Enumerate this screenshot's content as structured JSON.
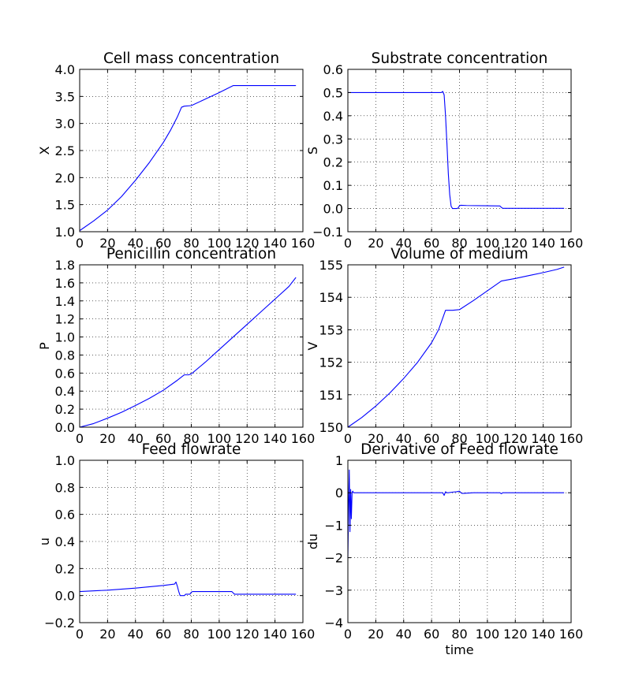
{
  "figure": {
    "background": "#ffffff",
    "line_color": "#0000ff",
    "grid": true,
    "grid_style": "dotted"
  },
  "chart_data": [
    {
      "type": "line",
      "title": "Cell mass concentration",
      "xlabel": "",
      "ylabel": "X",
      "xlim": [
        0,
        160
      ],
      "ylim": [
        1.0,
        4.0
      ],
      "xticks": [
        0,
        20,
        40,
        60,
        80,
        100,
        120,
        140,
        160
      ],
      "xtick_labels": [
        "0",
        "20",
        "40",
        "60",
        "80",
        "100",
        "120",
        "140",
        "160"
      ],
      "yticks": [
        1.0,
        1.5,
        2.0,
        2.5,
        3.0,
        3.5,
        4.0
      ],
      "ytick_labels": [
        "1.0",
        "1.5",
        "2.0",
        "2.5",
        "3.0",
        "3.5",
        "4.0"
      ],
      "series": [
        {
          "x": [
            0,
            10,
            20,
            30,
            40,
            50,
            60,
            65,
            70,
            73,
            75,
            80,
            90,
            100,
            110,
            120,
            130,
            140,
            150,
            155
          ],
          "y": [
            1.02,
            1.2,
            1.4,
            1.65,
            1.95,
            2.28,
            2.65,
            2.87,
            3.12,
            3.3,
            3.32,
            3.33,
            3.45,
            3.57,
            3.7,
            3.7,
            3.7,
            3.7,
            3.7,
            3.7
          ]
        }
      ]
    },
    {
      "type": "line",
      "title": "Substrate concentration",
      "xlabel": "",
      "ylabel": "S",
      "xlim": [
        0,
        160
      ],
      "ylim": [
        -0.1,
        0.6
      ],
      "xticks": [
        0,
        20,
        40,
        60,
        80,
        100,
        120,
        140,
        160
      ],
      "xtick_labels": [
        "0",
        "20",
        "40",
        "60",
        "80",
        "100",
        "120",
        "140",
        "160"
      ],
      "yticks": [
        -0.1,
        0.0,
        0.1,
        0.2,
        0.3,
        0.4,
        0.5,
        0.6
      ],
      "ytick_labels": [
        "−0.1",
        "0.0",
        "0.1",
        "0.2",
        "0.3",
        "0.4",
        "0.5",
        "0.6"
      ],
      "series": [
        {
          "x": [
            0,
            20,
            40,
            60,
            67,
            68,
            69,
            70,
            71,
            72,
            73,
            74,
            75,
            76,
            78,
            79,
            80,
            81,
            85,
            100,
            109,
            110,
            111,
            120,
            140,
            155
          ],
          "y": [
            0.5,
            0.5,
            0.5,
            0.5,
            0.5,
            0.505,
            0.49,
            0.4,
            0.28,
            0.15,
            0.06,
            0.01,
            0.0,
            0.0,
            0.0,
            0.002,
            0.012,
            0.014,
            0.013,
            0.012,
            0.011,
            0.005,
            0.001,
            0.001,
            0.001,
            0.001
          ]
        }
      ]
    },
    {
      "type": "line",
      "title": "Penicillin concentration",
      "xlabel": "",
      "ylabel": "P",
      "xlim": [
        0,
        160
      ],
      "ylim": [
        0.0,
        1.8
      ],
      "xticks": [
        0,
        20,
        40,
        60,
        80,
        100,
        120,
        140,
        160
      ],
      "xtick_labels": [
        "0",
        "20",
        "40",
        "60",
        "80",
        "100",
        "120",
        "140",
        "160"
      ],
      "yticks": [
        0.0,
        0.2,
        0.4,
        0.6,
        0.8,
        1.0,
        1.2,
        1.4,
        1.6,
        1.8
      ],
      "ytick_labels": [
        "0.0",
        "0.2",
        "0.4",
        "0.6",
        "0.8",
        "1.0",
        "1.2",
        "1.4",
        "1.6",
        "1.8"
      ],
      "series": [
        {
          "x": [
            0,
            10,
            20,
            30,
            40,
            50,
            60,
            70,
            75,
            78,
            80,
            90,
            100,
            110,
            120,
            130,
            140,
            150,
            155
          ],
          "y": [
            0.0,
            0.04,
            0.1,
            0.165,
            0.24,
            0.32,
            0.41,
            0.52,
            0.58,
            0.58,
            0.59,
            0.72,
            0.86,
            1.0,
            1.14,
            1.28,
            1.42,
            1.56,
            1.66
          ]
        }
      ]
    },
    {
      "type": "line",
      "title": "Volume of medium",
      "xlabel": "",
      "ylabel": "V",
      "xlim": [
        0,
        160
      ],
      "ylim": [
        150,
        155
      ],
      "xticks": [
        0,
        20,
        40,
        60,
        80,
        100,
        120,
        140,
        160
      ],
      "xtick_labels": [
        "0",
        "20",
        "40",
        "60",
        "80",
        "100",
        "120",
        "140",
        "160"
      ],
      "yticks": [
        150,
        151,
        152,
        153,
        154,
        155
      ],
      "ytick_labels": [
        "150",
        "151",
        "152",
        "153",
        "154",
        "155"
      ],
      "series": [
        {
          "x": [
            0,
            10,
            20,
            30,
            40,
            50,
            60,
            65,
            70,
            75,
            80,
            90,
            100,
            110,
            120,
            130,
            140,
            150,
            155
          ],
          "y": [
            150.0,
            150.3,
            150.65,
            151.05,
            151.5,
            152.0,
            152.6,
            153.0,
            153.6,
            153.6,
            153.62,
            153.9,
            154.2,
            154.5,
            154.58,
            154.67,
            154.76,
            154.86,
            154.93
          ]
        }
      ]
    },
    {
      "type": "line",
      "title": "Feed flowrate",
      "xlabel": "",
      "ylabel": "u",
      "xlim": [
        0,
        160
      ],
      "ylim": [
        -0.2,
        1.0
      ],
      "xticks": [
        0,
        20,
        40,
        60,
        80,
        100,
        120,
        140,
        160
      ],
      "xtick_labels": [
        "0",
        "20",
        "40",
        "60",
        "80",
        "100",
        "120",
        "140",
        "160"
      ],
      "yticks": [
        -0.2,
        0.0,
        0.2,
        0.4,
        0.6,
        0.8,
        1.0
      ],
      "ytick_labels": [
        "−0.2",
        "0.0",
        "0.2",
        "0.4",
        "0.6",
        "0.8",
        "1.0"
      ],
      "series": [
        {
          "x": [
            0,
            20,
            40,
            60,
            68,
            69,
            70,
            71,
            72,
            73,
            75,
            76,
            78,
            79,
            80,
            81,
            85,
            100,
            109,
            110,
            111,
            120,
            140,
            155
          ],
          "y": [
            0.03,
            0.04,
            0.055,
            0.075,
            0.085,
            0.1,
            0.07,
            0.03,
            0.0,
            0.0,
            0.0,
            0.01,
            0.01,
            0.01,
            0.025,
            0.03,
            0.03,
            0.03,
            0.03,
            0.02,
            0.01,
            0.01,
            0.01,
            0.01
          ]
        }
      ]
    },
    {
      "type": "line",
      "title": "Derivative of Feed flowrate",
      "xlabel": "time",
      "ylabel": "du",
      "xlim": [
        0,
        160
      ],
      "ylim": [
        -4,
        1
      ],
      "xticks": [
        0,
        20,
        40,
        60,
        80,
        100,
        120,
        140,
        160
      ],
      "xtick_labels": [
        "0",
        "20",
        "40",
        "60",
        "80",
        "100",
        "120",
        "140",
        "160"
      ],
      "yticks": [
        -4,
        -3,
        -2,
        -1,
        0,
        1
      ],
      "ytick_labels": [
        "−4",
        "−3",
        "−2",
        "−1",
        "0",
        "1"
      ],
      "series": [
        {
          "x": [
            0,
            0.5,
            1,
            1.5,
            2,
            2.5,
            3,
            3.5,
            4,
            10,
            30,
            60,
            68,
            69,
            70,
            71,
            72,
            75,
            78,
            80,
            81,
            82,
            90,
            100,
            109,
            110,
            111,
            120,
            140,
            155
          ],
          "y": [
            -2.0,
            -0.5,
            0.7,
            -1.2,
            0.1,
            -0.8,
            0.0,
            0.05,
            0.0,
            0.0,
            0.0,
            0.0,
            0.0,
            -0.08,
            0.03,
            0.0,
            0.0,
            0.02,
            0.03,
            0.05,
            0.0,
            -0.02,
            0.0,
            0.0,
            0.0,
            -0.03,
            0.0,
            0.0,
            0.0,
            0.0
          ]
        }
      ]
    }
  ]
}
